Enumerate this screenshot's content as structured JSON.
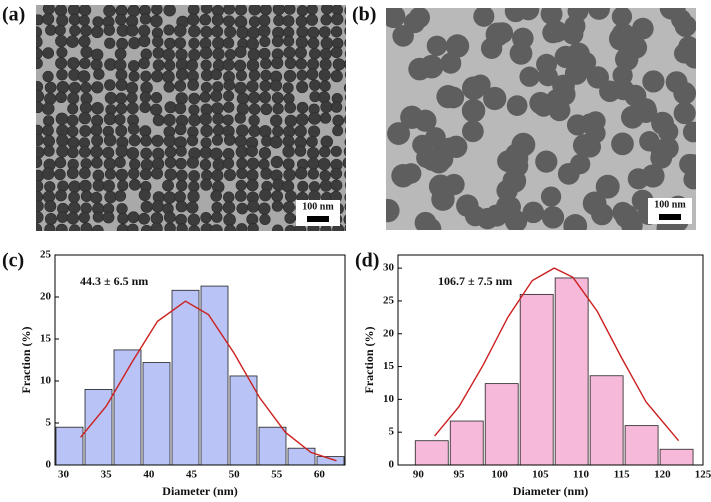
{
  "panels": [
    {
      "label": "(a)",
      "scale_bar": "100 nm"
    },
    {
      "label": "(b)",
      "scale_bar": "100 nm"
    }
  ],
  "chart_data": [
    {
      "type": "histogram",
      "label": "(c)",
      "annotation": "44.3 ± 6.5 nm",
      "xlabel": "Diameter (nm)",
      "ylabel": "Fraction (%)",
      "bins": [
        29,
        32.4,
        35.8,
        39.2,
        42.6,
        46,
        49.4,
        52.8,
        56.2,
        59.6,
        63
      ],
      "values": [
        4.5,
        9,
        13.7,
        12.2,
        20.8,
        21.3,
        10.6,
        4.5,
        2,
        1
      ],
      "color": "#b9c3f5",
      "curve": {
        "x": [
          32,
          35,
          38,
          41,
          44.3,
          47,
          50,
          53,
          56,
          59,
          62
        ],
        "y": [
          3.3,
          7.0,
          12.2,
          17.1,
          19.5,
          17.9,
          13.3,
          8.0,
          3.9,
          1.5,
          0.5
        ],
        "color": "#cc2020"
      },
      "xlim": [
        29,
        63
      ],
      "ylim": [
        0,
        25
      ],
      "xticks": [
        30,
        35,
        40,
        45,
        50,
        55,
        60
      ],
      "yticks": [
        0,
        5,
        10,
        15,
        20,
        25
      ]
    },
    {
      "type": "histogram",
      "label": "(d)",
      "annotation": "106.7 ± 7.5 nm",
      "xlabel": "Diameter (nm)",
      "ylabel": "Fraction (%)",
      "bins": [
        89.5,
        93.8,
        98.1,
        102.4,
        106.7,
        111,
        115.3,
        119.6,
        123.9
      ],
      "values": [
        3.7,
        6.7,
        12.4,
        26,
        28.5,
        13.6,
        6,
        2.4
      ],
      "color": "#f7b9d9",
      "curve": {
        "x": [
          92,
          95,
          98,
          101,
          104,
          106.7,
          109,
          112,
          115,
          118,
          122
        ],
        "y": [
          4.4,
          8.9,
          15.3,
          22.5,
          28.1,
          30,
          28.6,
          23.4,
          16.3,
          9.6,
          3.7
        ],
        "color": "#cc2020"
      },
      "xlim": [
        87.5,
        125
      ],
      "ylim": [
        0,
        32
      ],
      "xticks": [
        90,
        95,
        100,
        105,
        110,
        115,
        120,
        125
      ],
      "yticks": [
        0,
        5,
        10,
        15,
        20,
        25,
        30
      ]
    }
  ]
}
